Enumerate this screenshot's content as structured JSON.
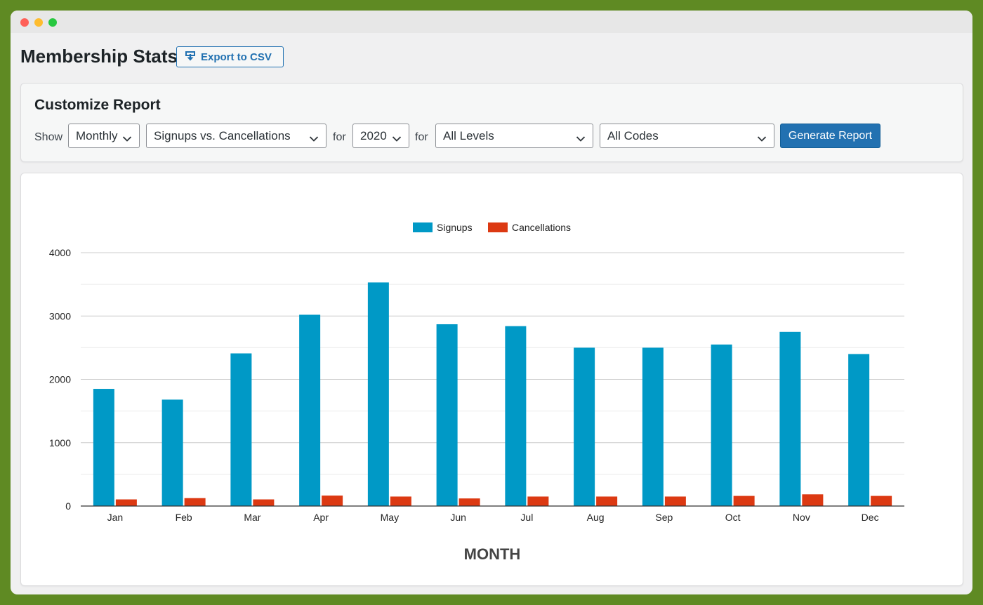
{
  "page": {
    "title": "Membership Stats",
    "export_label": "Export to CSV"
  },
  "report": {
    "title": "Customize Report",
    "show_label": "Show",
    "period": "Monthly",
    "type": "Signups vs. Cancellations",
    "for_label_1": "for",
    "year": "2020",
    "for_label_2": "for",
    "level": "All Levels",
    "code": "All Codes",
    "generate_label": "Generate Report"
  },
  "colors": {
    "signups": "#0099c6",
    "cancellations": "#dc3912",
    "accent": "#2271b1"
  },
  "icons": {
    "export": "download-icon",
    "dropdown": "chevron-down-icon"
  },
  "chart_data": {
    "type": "bar",
    "categories": [
      "Jan",
      "Feb",
      "Mar",
      "Apr",
      "May",
      "Jun",
      "Jul",
      "Aug",
      "Sep",
      "Oct",
      "Nov",
      "Dec"
    ],
    "series": [
      {
        "name": "Signups",
        "values": [
          1850,
          1680,
          2410,
          3020,
          3530,
          2870,
          2840,
          2500,
          2500,
          2550,
          2750,
          2400
        ]
      },
      {
        "name": "Cancellations",
        "values": [
          105,
          125,
          105,
          165,
          150,
          120,
          150,
          150,
          150,
          160,
          185,
          160
        ]
      }
    ],
    "xlabel": "MONTH",
    "ylabel": "",
    "ylim": [
      0,
      4000
    ],
    "yticks": [
      0,
      1000,
      2000,
      3000,
      4000
    ],
    "grid": true,
    "legend": "top-center"
  }
}
